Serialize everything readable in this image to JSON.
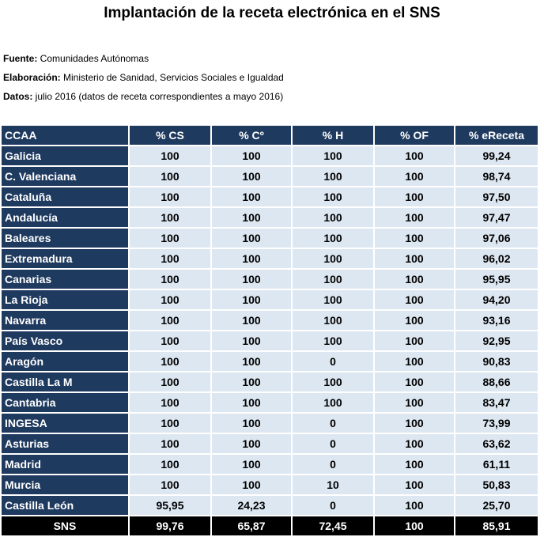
{
  "title": "Implantación de la receta electrónica en el SNS",
  "meta": {
    "source_label": "Fuente:",
    "source_value": " Comunidades Autónomas",
    "elab_label": "Elaboración:",
    "elab_value": " Ministerio de Sanidad, Servicios Sociales e Igualdad",
    "date_label": "Datos:",
    "date_value": " julio 2016 (datos de receta correspondientes a mayo 2016)"
  },
  "table": {
    "headers": [
      "CCAA",
      "% CS",
      "% Cº",
      "% H",
      "% OF",
      "% eReceta"
    ],
    "rows": [
      [
        "Galicia",
        "100",
        "100",
        "100",
        "100",
        "99,24"
      ],
      [
        "C. Valenciana",
        "100",
        "100",
        "100",
        "100",
        "98,74"
      ],
      [
        "Cataluña",
        "100",
        "100",
        "100",
        "100",
        "97,50"
      ],
      [
        "Andalucía",
        "100",
        "100",
        "100",
        "100",
        "97,47"
      ],
      [
        "Baleares",
        "100",
        "100",
        "100",
        "100",
        "97,06"
      ],
      [
        "Extremadura",
        "100",
        "100",
        "100",
        "100",
        "96,02"
      ],
      [
        "Canarias",
        "100",
        "100",
        "100",
        "100",
        "95,95"
      ],
      [
        "La Rioja",
        "100",
        "100",
        "100",
        "100",
        "94,20"
      ],
      [
        "Navarra",
        "100",
        "100",
        "100",
        "100",
        "93,16"
      ],
      [
        "País Vasco",
        "100",
        "100",
        "100",
        "100",
        "92,95"
      ],
      [
        "Aragón",
        "100",
        "100",
        "0",
        "100",
        "90,83"
      ],
      [
        "Castilla La M",
        "100",
        "100",
        "100",
        "100",
        "88,66"
      ],
      [
        "Cantabria",
        "100",
        "100",
        "100",
        "100",
        "83,47"
      ],
      [
        "INGESA",
        "100",
        "100",
        "0",
        "100",
        "73,99"
      ],
      [
        "Asturias",
        "100",
        "100",
        "0",
        "100",
        "63,62"
      ],
      [
        "Madrid",
        "100",
        "100",
        "0",
        "100",
        "61,11"
      ],
      [
        "Murcia",
        "100",
        "100",
        "10",
        "100",
        "50,83"
      ],
      [
        "Castilla León",
        "95,95",
        "24,23",
        "0",
        "100",
        "25,70"
      ]
    ],
    "total": [
      "SNS",
      "99,76",
      "65,87",
      "72,45",
      "100",
      "85,91"
    ]
  },
  "colors": {
    "header_bg": "#1f3a5f",
    "cell_bg": "#dde7f1",
    "total_bg": "#000000"
  }
}
